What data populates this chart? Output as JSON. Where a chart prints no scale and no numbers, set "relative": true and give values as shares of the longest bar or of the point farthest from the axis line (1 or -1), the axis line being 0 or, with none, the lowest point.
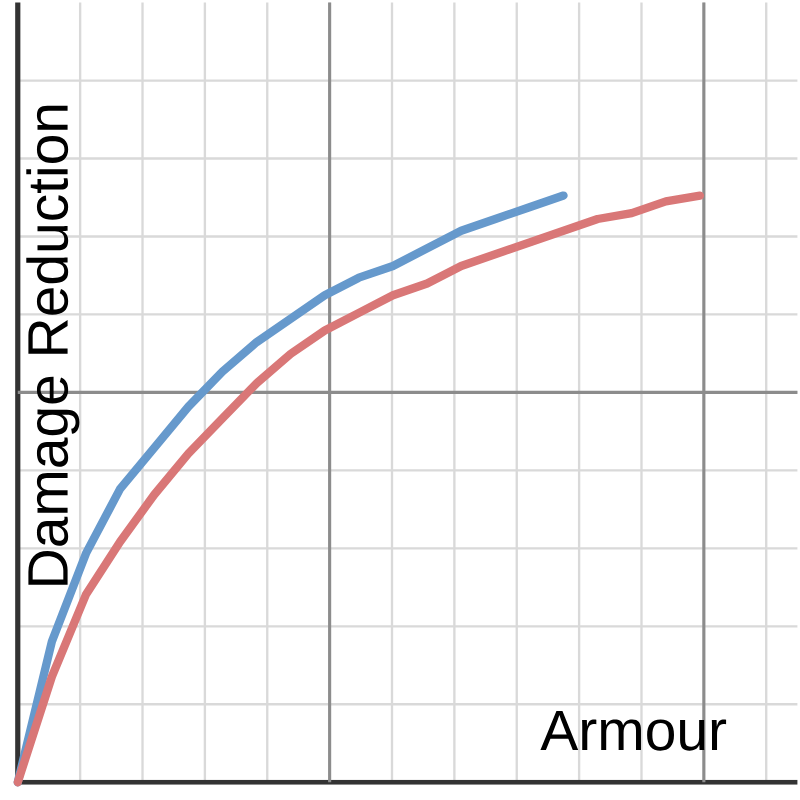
{
  "chart_data": {
    "type": "line",
    "relative": true,
    "xlabel": "Armour",
    "ylabel": "Damage Reduction",
    "grid": true,
    "marker": "none",
    "line_style": "solid",
    "categories": [
      null,
      null,
      null,
      null,
      null,
      null,
      null,
      null,
      null,
      null,
      null,
      null,
      null,
      null,
      null,
      null,
      null,
      null,
      null,
      null,
      null
    ],
    "series": [
      {
        "color": "#6699cc",
        "values": [
          0,
          0.24,
          0.39,
          0.5,
          0.57,
          0.64,
          0.7,
          0.75,
          0.79,
          0.83,
          0.86,
          0.88,
          0.91,
          0.94,
          0.96,
          0.98,
          1.0,
          null,
          null,
          null,
          null
        ]
      },
      {
        "color": "#d97777",
        "values": [
          0,
          0.18,
          0.32,
          0.41,
          0.49,
          0.56,
          0.62,
          0.68,
          0.73,
          0.77,
          0.8,
          0.83,
          0.85,
          0.88,
          0.9,
          0.92,
          0.94,
          0.96,
          0.97,
          0.99,
          1.0
        ]
      }
    ]
  }
}
